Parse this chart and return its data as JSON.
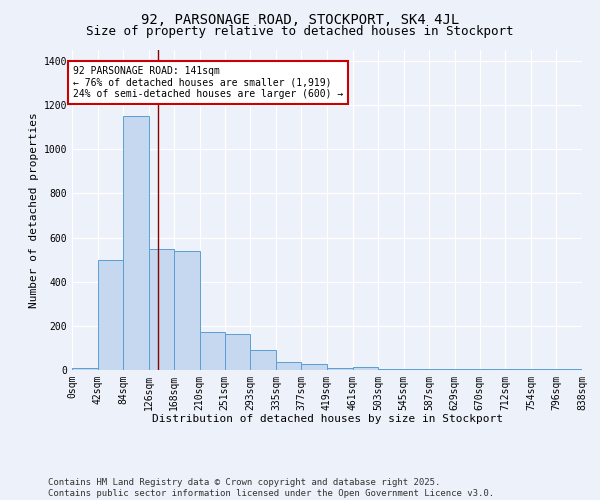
{
  "title": "92, PARSONAGE ROAD, STOCKPORT, SK4 4JL",
  "subtitle": "Size of property relative to detached houses in Stockport",
  "xlabel": "Distribution of detached houses by size in Stockport",
  "ylabel": "Number of detached properties",
  "bin_edges": [
    0,
    42,
    84,
    126,
    168,
    210,
    251,
    293,
    335,
    377,
    419,
    461,
    503,
    545,
    587,
    629,
    670,
    712,
    754,
    796,
    838
  ],
  "bar_heights": [
    8,
    500,
    1150,
    550,
    540,
    170,
    165,
    90,
    35,
    25,
    10,
    12,
    5,
    3,
    3,
    3,
    3,
    3,
    3,
    3
  ],
  "bar_color": "#c5d8f0",
  "bar_edge_color": "#5a9fd4",
  "red_line_x": 141,
  "annotation_text": "92 PARSONAGE ROAD: 141sqm\n← 76% of detached houses are smaller (1,919)\n24% of semi-detached houses are larger (600) →",
  "annotation_box_color": "#ffffff",
  "annotation_box_edge": "#cc0000",
  "ylim_max": 1450,
  "yticks": [
    0,
    200,
    400,
    600,
    800,
    1000,
    1200,
    1400
  ],
  "background_color": "#edf1f9",
  "grid_color": "#d8dff0",
  "footer_line1": "Contains HM Land Registry data © Crown copyright and database right 2025.",
  "footer_line2": "Contains public sector information licensed under the Open Government Licence v3.0.",
  "title_fontsize": 10,
  "subtitle_fontsize": 9,
  "xlabel_fontsize": 8,
  "ylabel_fontsize": 8,
  "tick_fontsize": 7,
  "annotation_fontsize": 7,
  "footer_fontsize": 6.5
}
